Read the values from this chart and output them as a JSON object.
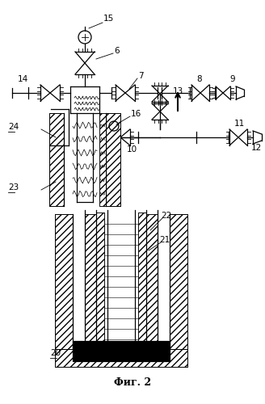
{
  "title": "Фиг. 2",
  "bg_color": "#ffffff",
  "line_color": "#000000"
}
